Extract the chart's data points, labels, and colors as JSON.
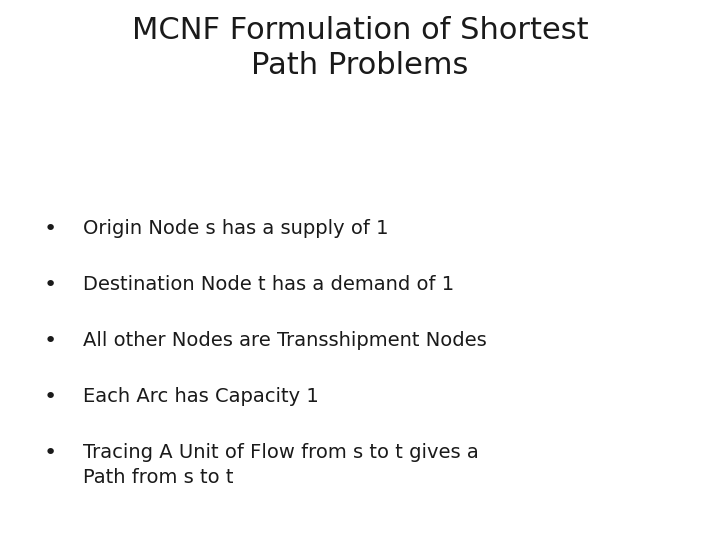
{
  "title_line1": "MCNF Formulation of Shortest",
  "title_line2": "Path Problems",
  "bullet_points": [
    "Origin Node s has a supply of 1",
    "Destination Node t has a demand of 1",
    "All other Nodes are Transshipment Nodes",
    "Each Arc has Capacity 1",
    "Tracing A Unit of Flow from s to t gives a\nPath from s to t"
  ],
  "background_color": "#ffffff",
  "text_color": "#1a1a1a",
  "title_fontsize": 22,
  "bullet_fontsize": 14,
  "font_family": "DejaVu Sans"
}
